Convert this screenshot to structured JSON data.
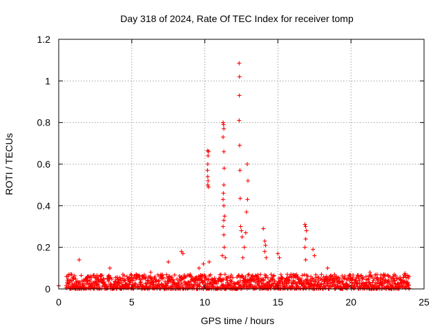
{
  "chart_data": {
    "type": "scatter",
    "title": "Day 318 of 2024, Rate Of TEC Index for receiver tomp",
    "xlabel": "GPS time / hours",
    "ylabel": "ROTI / TECUs",
    "xlim": [
      0,
      25
    ],
    "ylim": [
      0,
      1.2
    ],
    "x_ticks": [
      0,
      5,
      10,
      15,
      20,
      25
    ],
    "x_tick_labels": [
      "0",
      "5",
      "10",
      "15",
      "20",
      "25"
    ],
    "y_ticks": [
      0,
      0.2,
      0.4,
      0.6,
      0.8,
      1.0,
      1.2
    ],
    "y_tick_labels": [
      "0",
      "0.2",
      "0.4",
      "0.6",
      "0.8",
      "1",
      "1.2"
    ],
    "grid": true,
    "marker": "+",
    "series": [
      {
        "name": "ROTI",
        "color": "#ff0000",
        "points": [
          [
            0.0,
            0.015
          ],
          [
            1.4,
            0.14
          ],
          [
            2.0,
            0.06
          ],
          [
            3.5,
            0.1
          ],
          [
            6.3,
            0.08
          ],
          [
            7.5,
            0.13
          ],
          [
            8.4,
            0.18
          ],
          [
            8.5,
            0.17
          ],
          [
            9.0,
            0.07
          ],
          [
            9.6,
            0.1
          ],
          [
            9.9,
            0.12
          ],
          [
            10.2,
            0.665
          ],
          [
            10.25,
            0.66
          ],
          [
            10.22,
            0.64
          ],
          [
            10.2,
            0.6
          ],
          [
            10.18,
            0.57
          ],
          [
            10.2,
            0.54
          ],
          [
            10.22,
            0.52
          ],
          [
            10.2,
            0.5
          ],
          [
            10.25,
            0.49
          ],
          [
            10.3,
            0.13
          ],
          [
            11.2,
            0.16
          ],
          [
            11.25,
            0.8
          ],
          [
            11.28,
            0.79
          ],
          [
            11.3,
            0.77
          ],
          [
            11.25,
            0.73
          ],
          [
            11.3,
            0.66
          ],
          [
            11.32,
            0.58
          ],
          [
            11.3,
            0.5
          ],
          [
            11.27,
            0.46
          ],
          [
            11.25,
            0.43
          ],
          [
            11.3,
            0.4
          ],
          [
            11.35,
            0.35
          ],
          [
            11.3,
            0.33
          ],
          [
            11.25,
            0.3
          ],
          [
            11.3,
            0.26
          ],
          [
            11.33,
            0.2
          ],
          [
            11.4,
            0.15
          ],
          [
            12.35,
            1.085
          ],
          [
            12.37,
            1.02
          ],
          [
            12.36,
            0.93
          ],
          [
            12.35,
            0.81
          ],
          [
            12.38,
            0.69
          ],
          [
            12.4,
            0.57
          ],
          [
            12.42,
            0.435
          ],
          [
            12.45,
            0.3
          ],
          [
            12.5,
            0.28
          ],
          [
            12.55,
            0.25
          ],
          [
            12.9,
            0.6
          ],
          [
            12.95,
            0.52
          ],
          [
            12.92,
            0.43
          ],
          [
            12.85,
            0.37
          ],
          [
            12.8,
            0.27
          ],
          [
            12.7,
            0.2
          ],
          [
            12.6,
            0.15
          ],
          [
            14.0,
            0.29
          ],
          [
            14.1,
            0.23
          ],
          [
            14.15,
            0.21
          ],
          [
            14.1,
            0.18
          ],
          [
            14.2,
            0.15
          ],
          [
            15.0,
            0.17
          ],
          [
            15.1,
            0.15
          ],
          [
            16.85,
            0.31
          ],
          [
            16.9,
            0.3
          ],
          [
            16.95,
            0.28
          ],
          [
            16.9,
            0.24
          ],
          [
            16.85,
            0.2
          ],
          [
            16.9,
            0.14
          ],
          [
            17.4,
            0.19
          ],
          [
            17.5,
            0.16
          ],
          [
            18.4,
            0.1
          ],
          [
            21.3,
            0.08
          ],
          [
            23.7,
            0.075
          ]
        ],
        "baseline": {
          "x_range": [
            0.5,
            24.0
          ],
          "values_range": [
            0.0,
            0.07
          ]
        }
      }
    ]
  }
}
